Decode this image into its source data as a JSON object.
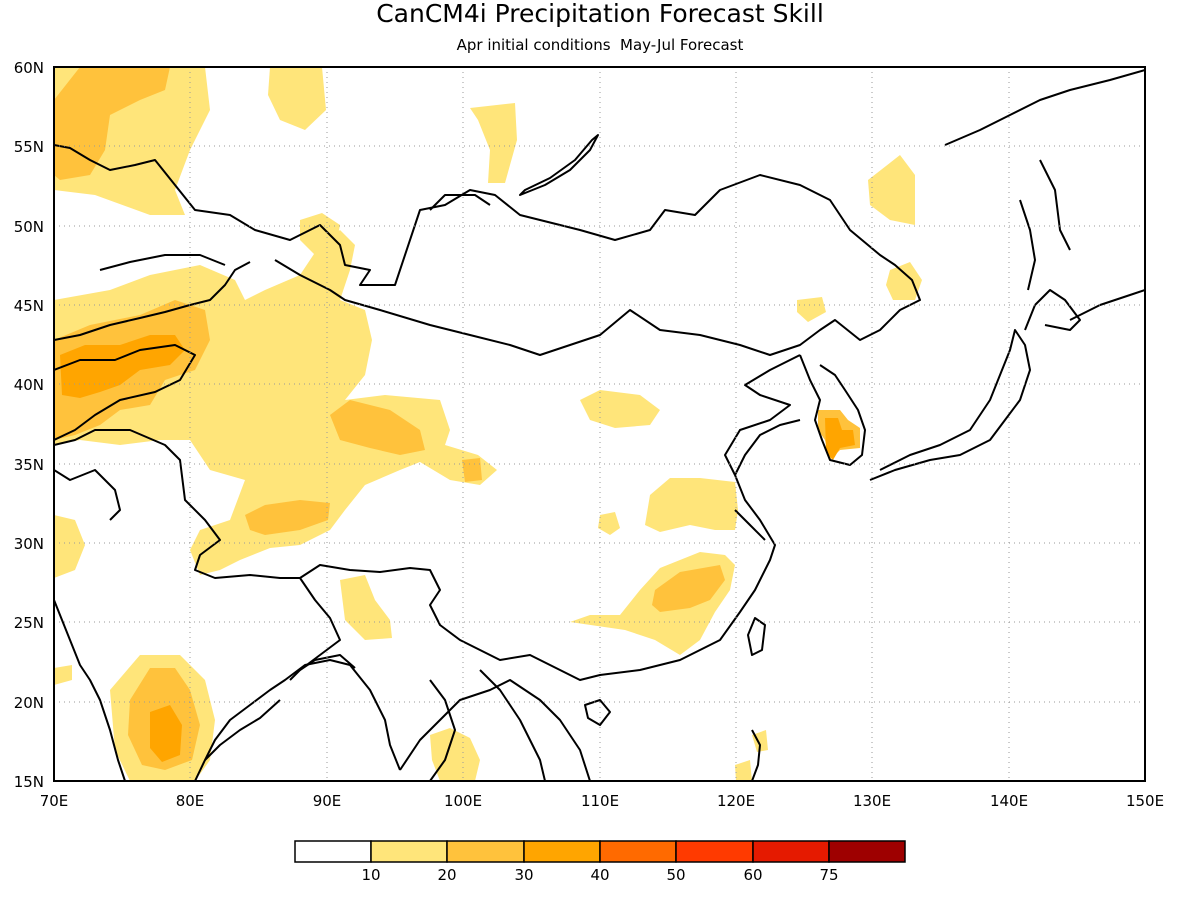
{
  "title": "CanCM4i Precipitation Forecast Skill",
  "subtitle": "Apr initial conditions  May-Jul Forecast",
  "map": {
    "lon_range": [
      70,
      150
    ],
    "lat_range": [
      15,
      60
    ],
    "lon_ticks": [
      "70E",
      "80E",
      "90E",
      "100E",
      "110E",
      "120E",
      "130E",
      "140E",
      "150E"
    ],
    "lat_ticks": [
      "15N",
      "20N",
      "25N",
      "30N",
      "35N",
      "40N",
      "45N",
      "50N",
      "55N",
      "60N"
    ],
    "grid": "dotted",
    "coastlines": true,
    "country_borders": true
  },
  "legend": {
    "colors": [
      "#ffffff",
      "#ffe57a",
      "#ffc23c",
      "#ffa500",
      "#ff6a00",
      "#ff3a00",
      "#e51a00",
      "#9e0000"
    ],
    "labels": [
      "10",
      "20",
      "30",
      "40",
      "50",
      "60",
      "75"
    ]
  },
  "shading_colors": {
    "c10": "#ffe57a",
    "c20": "#ffc23c",
    "c30": "#ffa500"
  }
}
